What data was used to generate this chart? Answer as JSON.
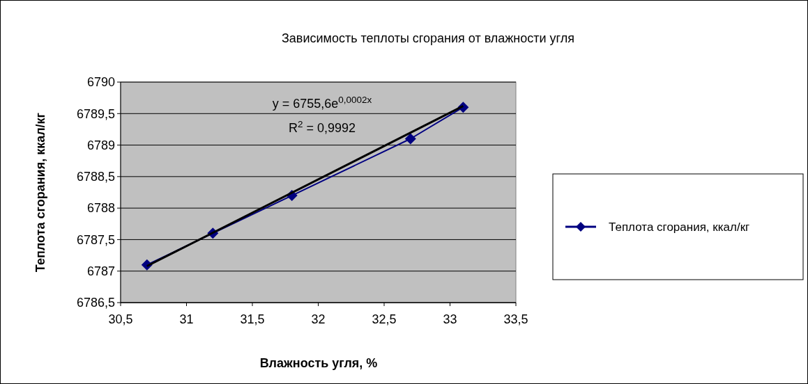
{
  "chart_data": {
    "type": "line",
    "title": "Зависимость теплоты сгорания от влажности угля",
    "xlabel": "Влажность угля, %",
    "ylabel": "Теплота сгорания, ккал/кг",
    "x": [
      30.7,
      31.2,
      31.8,
      32.7,
      33.1
    ],
    "series": [
      {
        "name": "Теплота сгорания, ккал/кг",
        "color": "#000080",
        "values": [
          6787.1,
          6787.6,
          6788.2,
          6789.1,
          6789.6
        ],
        "marker": "diamond"
      },
      {
        "type": "line",
        "color": "#000000",
        "x": [
          30.7,
          33.1
        ],
        "values": [
          6787.08,
          6789.62
        ],
        "marker": "none"
      }
    ],
    "xlim": [
      30.5,
      33.5
    ],
    "xticks": [
      {
        "value": 30.5,
        "label": "30,5"
      },
      31,
      {
        "value": 31.5,
        "label": "31,5"
      },
      32,
      {
        "value": 32.5,
        "label": "32,5"
      },
      33,
      {
        "value": 33.5,
        "label": "33,5"
      }
    ],
    "ylim": [
      6786.5,
      6790
    ],
    "yticks": [
      {
        "value": 6786.5,
        "label": "6786,5"
      },
      6787,
      {
        "value": 6787.5,
        "label": "6787,5"
      },
      6788,
      {
        "value": 6788.5,
        "label": "6788,5"
      },
      6789,
      {
        "value": 6789.5,
        "label": "6789,5"
      },
      6790
    ],
    "annotations": [
      "y = 6755,6e$^{0,0002x}$",
      "R$^{2}$ = 0,9992"
    ],
    "grid": "y",
    "legend": "right",
    "line_style": "solid"
  }
}
